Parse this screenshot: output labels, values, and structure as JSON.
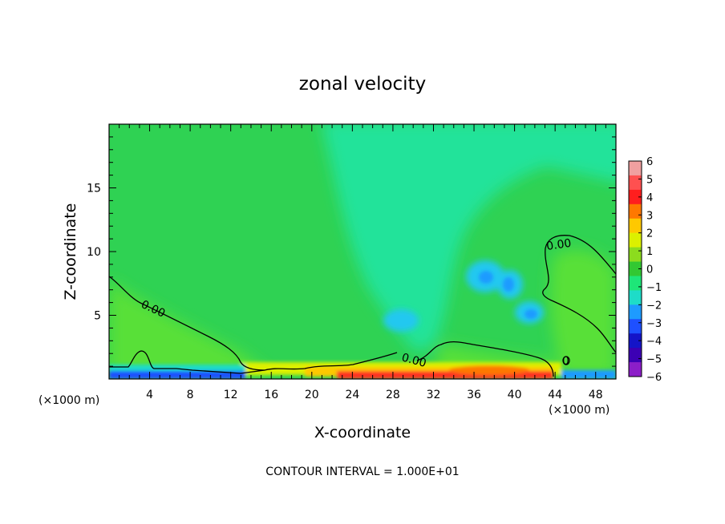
{
  "chart_data": {
    "type": "heatmap",
    "title": "zonal velocity",
    "xlabel": "X-coordinate",
    "ylabel": "Z-coordinate",
    "x_unit_left": "(×1000 m)",
    "x_unit_right": "(×1000 m)",
    "xlim": [
      0,
      50
    ],
    "ylim": [
      0,
      20
    ],
    "x_ticks": [
      4,
      8,
      12,
      16,
      20,
      24,
      28,
      32,
      36,
      40,
      44,
      48
    ],
    "y_ticks": [
      5,
      10,
      15
    ],
    "footer": "CONTOUR INTERVAL = 1.000E+01",
    "contour_labels": [
      {
        "text": "0.00",
        "x": 3,
        "z": 6
      },
      {
        "text": "0.00",
        "x": 29.5,
        "z": 1.8
      },
      {
        "text": "0.00",
        "x": 45,
        "z": 10.7
      },
      {
        "text": "0",
        "x": 45.2,
        "z": 1.3
      }
    ],
    "colorbar": {
      "levels": [
        6,
        5,
        4,
        3,
        2,
        1,
        0,
        -1,
        -2,
        -3,
        -4,
        -5,
        -6
      ],
      "colors": [
        "#f0a0a0",
        "#ff5050",
        "#ff1e1e",
        "#ff7800",
        "#ffc800",
        "#dcf000",
        "#8cdc1e",
        "#32c832",
        "#1ee678",
        "#1edcc8",
        "#1e9bff",
        "#1e50ff",
        "#1414c8",
        "#3c00b4",
        "#8c1ec8"
      ]
    },
    "field": {
      "background": "#2fd253",
      "upper_band": "#22e39a",
      "lower_band": "#58e038",
      "negative_core": "#20c8f0",
      "positive_core": "#ff3020"
    }
  }
}
